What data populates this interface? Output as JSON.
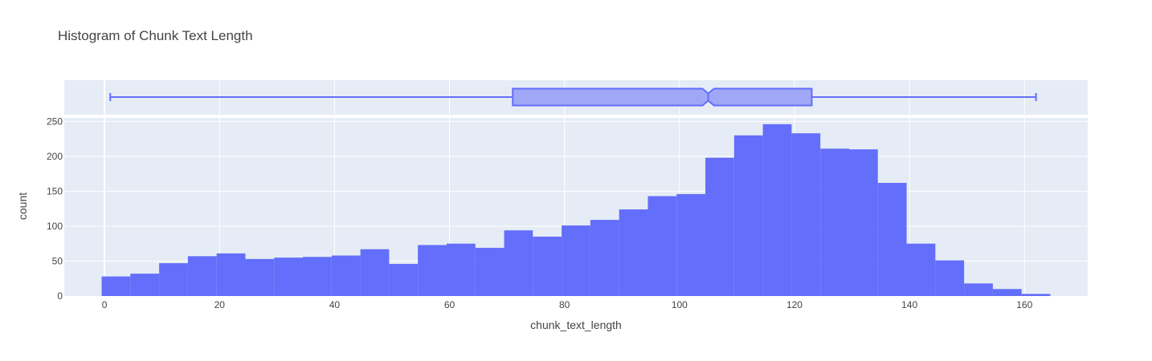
{
  "chart_data": {
    "type": "bar",
    "title": "Histogram of Chunk Text Length",
    "xlabel": "chunk_text_length",
    "ylabel": "count",
    "xlim": [
      -7,
      171
    ],
    "ylim": [
      0,
      255
    ],
    "xticks": [
      "0",
      "20",
      "40",
      "60",
      "80",
      "100",
      "120",
      "140",
      "160"
    ],
    "yticks": [
      "0",
      "50",
      "100",
      "150",
      "200",
      "250"
    ],
    "bin_width": 5,
    "bins": [
      {
        "start": -0.5,
        "count": 28
      },
      {
        "start": 4.5,
        "count": 32
      },
      {
        "start": 9.5,
        "count": 47
      },
      {
        "start": 14.5,
        "count": 57
      },
      {
        "start": 19.5,
        "count": 61
      },
      {
        "start": 24.5,
        "count": 53
      },
      {
        "start": 29.5,
        "count": 55
      },
      {
        "start": 34.5,
        "count": 56
      },
      {
        "start": 39.5,
        "count": 58
      },
      {
        "start": 44.5,
        "count": 67
      },
      {
        "start": 49.5,
        "count": 46
      },
      {
        "start": 54.5,
        "count": 73
      },
      {
        "start": 59.5,
        "count": 75
      },
      {
        "start": 64.5,
        "count": 69
      },
      {
        "start": 69.5,
        "count": 94
      },
      {
        "start": 74.5,
        "count": 85
      },
      {
        "start": 79.5,
        "count": 101
      },
      {
        "start": 84.5,
        "count": 109
      },
      {
        "start": 89.5,
        "count": 124
      },
      {
        "start": 94.5,
        "count": 143
      },
      {
        "start": 99.5,
        "count": 146
      },
      {
        "start": 104.5,
        "count": 198
      },
      {
        "start": 109.5,
        "count": 230
      },
      {
        "start": 114.5,
        "count": 246
      },
      {
        "start": 119.5,
        "count": 233
      },
      {
        "start": 124.5,
        "count": 211
      },
      {
        "start": 129.5,
        "count": 210
      },
      {
        "start": 134.5,
        "count": 162
      },
      {
        "start": 139.5,
        "count": 75
      },
      {
        "start": 144.5,
        "count": 51
      },
      {
        "start": 149.5,
        "count": 18
      },
      {
        "start": 154.5,
        "count": 10
      },
      {
        "start": 159.5,
        "count": 3
      }
    ],
    "box": {
      "min": 1,
      "q1": 71,
      "median": 105,
      "q3": 123,
      "max": 162,
      "notch_low": 104,
      "notch_high": 106
    },
    "grid": true,
    "legend": "none",
    "colors": {
      "bar": "#636efa",
      "box_fill": "#a0a7f7",
      "plot_bg": "#e5ecf6",
      "grid": "#ffffff",
      "text": "#444444"
    }
  }
}
